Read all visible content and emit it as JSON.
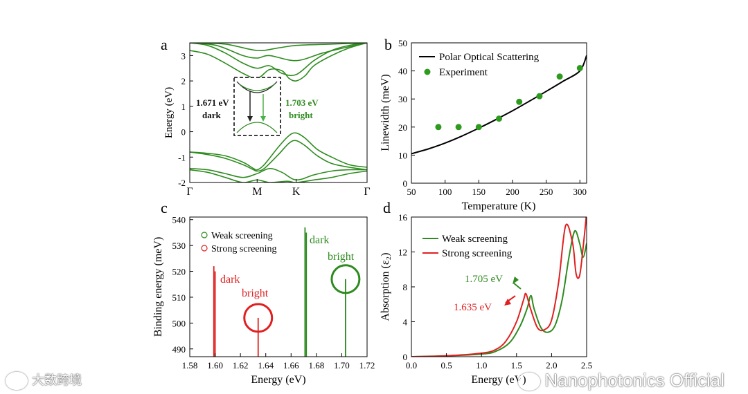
{
  "chart_data": [
    {
      "panel": "a",
      "type": "line",
      "ylabel": "Energy (eV)",
      "ylim": [
        -2,
        3.5
      ],
      "yticks": [
        "-2",
        "-1",
        "0",
        "1",
        "2",
        "3"
      ],
      "kpoints": [
        "Γ",
        "M",
        "K",
        "Γ"
      ],
      "kpos": [
        0,
        0.38,
        0.6,
        1
      ],
      "color": "#2e8b1f",
      "bands": [
        {
          "name": "cb1",
          "x": [
            0,
            0.1,
            0.2,
            0.3,
            0.38,
            0.45,
            0.52,
            0.56,
            0.6,
            0.65,
            0.7,
            0.8,
            0.9,
            1.0
          ],
          "y": [
            3.2,
            3.05,
            2.7,
            2.3,
            2.1,
            2.45,
            2.4,
            2.1,
            2.0,
            2.2,
            2.6,
            3.0,
            3.3,
            3.5
          ]
        },
        {
          "name": "cb2",
          "x": [
            0,
            0.1,
            0.2,
            0.3,
            0.38,
            0.45,
            0.52,
            0.6,
            0.7,
            0.8,
            0.9,
            1.0
          ],
          "y": [
            3.5,
            3.4,
            3.1,
            2.7,
            2.5,
            2.6,
            2.3,
            2.25,
            2.8,
            3.2,
            3.4,
            3.5
          ]
        },
        {
          "name": "cb3",
          "x": [
            0,
            0.15,
            0.3,
            0.38,
            0.45,
            0.6,
            0.75,
            0.9,
            1.0
          ],
          "y": [
            3.5,
            3.4,
            3.0,
            2.9,
            3.0,
            2.8,
            3.1,
            3.35,
            3.5
          ]
        },
        {
          "name": "cb4",
          "x": [
            0,
            0.2,
            0.38,
            0.5,
            0.6,
            0.8,
            1.0
          ],
          "y": [
            3.5,
            3.45,
            3.2,
            3.3,
            3.4,
            3.45,
            3.5
          ]
        },
        {
          "name": "vb1",
          "x": [
            0,
            0.1,
            0.2,
            0.3,
            0.36,
            0.38,
            0.42,
            0.5,
            0.56,
            0.6,
            0.65,
            0.72,
            0.8,
            0.9,
            1.0
          ],
          "y": [
            -0.8,
            -0.85,
            -0.95,
            -1.2,
            -1.45,
            -1.5,
            -1.3,
            -0.6,
            -0.15,
            -0.05,
            -0.25,
            -0.7,
            -1.0,
            -1.3,
            -1.4
          ]
        },
        {
          "name": "vb2",
          "x": [
            0,
            0.1,
            0.2,
            0.3,
            0.36,
            0.38,
            0.42,
            0.5,
            0.56,
            0.6,
            0.65,
            0.72,
            0.8,
            0.9,
            1.0
          ],
          "y": [
            -0.8,
            -0.9,
            -1.05,
            -1.3,
            -1.5,
            -1.55,
            -1.45,
            -0.9,
            -0.45,
            -0.35,
            -0.55,
            -0.95,
            -1.25,
            -1.4,
            -1.5
          ]
        },
        {
          "name": "vb3",
          "x": [
            0,
            0.1,
            0.2,
            0.3,
            0.38,
            0.45,
            0.52,
            0.6,
            0.7,
            0.8,
            0.9,
            1.0
          ],
          "y": [
            -1.45,
            -1.5,
            -1.65,
            -1.8,
            -1.65,
            -1.45,
            -1.6,
            -1.9,
            -1.7,
            -1.55,
            -1.5,
            -1.5
          ]
        },
        {
          "name": "vb4",
          "x": [
            0,
            0.1,
            0.2,
            0.3,
            0.38,
            0.45,
            0.55,
            0.6,
            0.7,
            0.8,
            0.9,
            1.0
          ],
          "y": [
            -1.5,
            -1.6,
            -1.8,
            -2.0,
            -1.9,
            -2.0,
            -1.95,
            -2.0,
            -1.9,
            -1.8,
            -1.65,
            -1.55
          ]
        }
      ],
      "inset": {
        "label_dark": "1.671 eV",
        "label_dark2": "dark",
        "label_bright": "1.703 eV",
        "label_bright2": "bright"
      }
    },
    {
      "panel": "b",
      "type": "line+scatter",
      "xlabel": "Temperature (K)",
      "ylabel": "Linewidth (meV)",
      "xlim": [
        50,
        310
      ],
      "ylim": [
        0,
        50
      ],
      "xticks": [
        50,
        100,
        150,
        200,
        250,
        300
      ],
      "yticks": [
        0,
        10,
        20,
        30,
        40,
        50
      ],
      "series": [
        {
          "name": "Polar Optical Scattering",
          "kind": "line",
          "color": "#000000",
          "x": [
            50,
            75,
            100,
            125,
            150,
            175,
            200,
            225,
            250,
            275,
            300,
            310
          ],
          "y": [
            10.5,
            12.2,
            14.3,
            16.8,
            19.6,
            22.6,
            25.8,
            29.2,
            32.7,
            36.3,
            40.0,
            45.5
          ]
        },
        {
          "name": "Experiment",
          "kind": "scatter",
          "color": "#2e9a1e",
          "x": [
            90,
            120,
            150,
            180,
            210,
            240,
            270,
            300
          ],
          "y": [
            20,
            20,
            20,
            23,
            29,
            31,
            38,
            41
          ]
        }
      ]
    },
    {
      "panel": "c",
      "type": "bar",
      "xlabel": "Energy (eV)",
      "ylabel": "Binding energy (meV)",
      "xlim": [
        1.58,
        1.72
      ],
      "ylim": [
        487,
        541
      ],
      "xticks": [
        "1.58",
        "1.60",
        "1.62",
        "1.64",
        "1.66",
        "1.68",
        "1.70",
        "1.72"
      ],
      "yticks": [
        "490",
        "500",
        "510",
        "520",
        "530",
        "540"
      ],
      "series": [
        {
          "name": "Weak screening",
          "color": "#2e8b1f",
          "x": [
            1.671,
            1.672,
            1.703
          ],
          "y": [
            537,
            535,
            517
          ]
        },
        {
          "name": "Strong screening",
          "color": "#e02020",
          "x": [
            1.599,
            1.6,
            1.634
          ],
          "y": [
            522,
            520,
            502
          ]
        }
      ],
      "annotations": [
        {
          "text": "dark",
          "color": "#e02020"
        },
        {
          "text": "bright",
          "color": "#e02020"
        },
        {
          "text": "dark",
          "color": "#2e8b1f"
        },
        {
          "text": "bright",
          "color": "#2e8b1f"
        }
      ]
    },
    {
      "panel": "d",
      "type": "line",
      "xlabel": "Energy (eV)",
      "ylabel": "Absorption (ε₂)",
      "xlim": [
        0,
        2.5
      ],
      "ylim": [
        0,
        16
      ],
      "xticks": [
        "0.0",
        "0.5",
        "1.0",
        "1.5",
        "2.0",
        "2.5"
      ],
      "yticks": [
        "0",
        "4",
        "8",
        "12",
        "16"
      ],
      "series": [
        {
          "name": "Weak screening",
          "color": "#2e8b1f",
          "x": [
            0,
            0.5,
            1.0,
            1.2,
            1.4,
            1.55,
            1.65,
            1.705,
            1.75,
            1.85,
            1.95,
            2.05,
            2.15,
            2.25,
            2.33,
            2.4,
            2.45,
            2.5
          ],
          "y": [
            0,
            0.1,
            0.3,
            0.6,
            1.6,
            3.5,
            5.5,
            7.0,
            5.5,
            3.3,
            2.8,
            3.6,
            6.5,
            11.5,
            14.4,
            13.0,
            11.4,
            13.0
          ]
        },
        {
          "name": "Strong screening",
          "color": "#e02020",
          "x": [
            0,
            0.5,
            1.0,
            1.2,
            1.35,
            1.5,
            1.6,
            1.635,
            1.7,
            1.8,
            1.9,
            2.0,
            2.1,
            2.2,
            2.3,
            2.35,
            2.4,
            2.45,
            2.5
          ],
          "y": [
            0,
            0.1,
            0.4,
            0.8,
            1.8,
            4.0,
            6.5,
            7.2,
            5.5,
            3.3,
            3.1,
            4.2,
            8.5,
            15.0,
            13.0,
            9.5,
            9.3,
            12.5,
            16.5
          ]
        }
      ],
      "annotations": [
        {
          "text": "1.705 eV",
          "color": "#2e8b1f"
        },
        {
          "text": "1.635 eV",
          "color": "#e02020"
        }
      ]
    }
  ],
  "panel_labels": [
    "a",
    "b",
    "c",
    "d"
  ],
  "watermarks": {
    "left": "大数跨境",
    "right": "Nanophotonics Official"
  }
}
